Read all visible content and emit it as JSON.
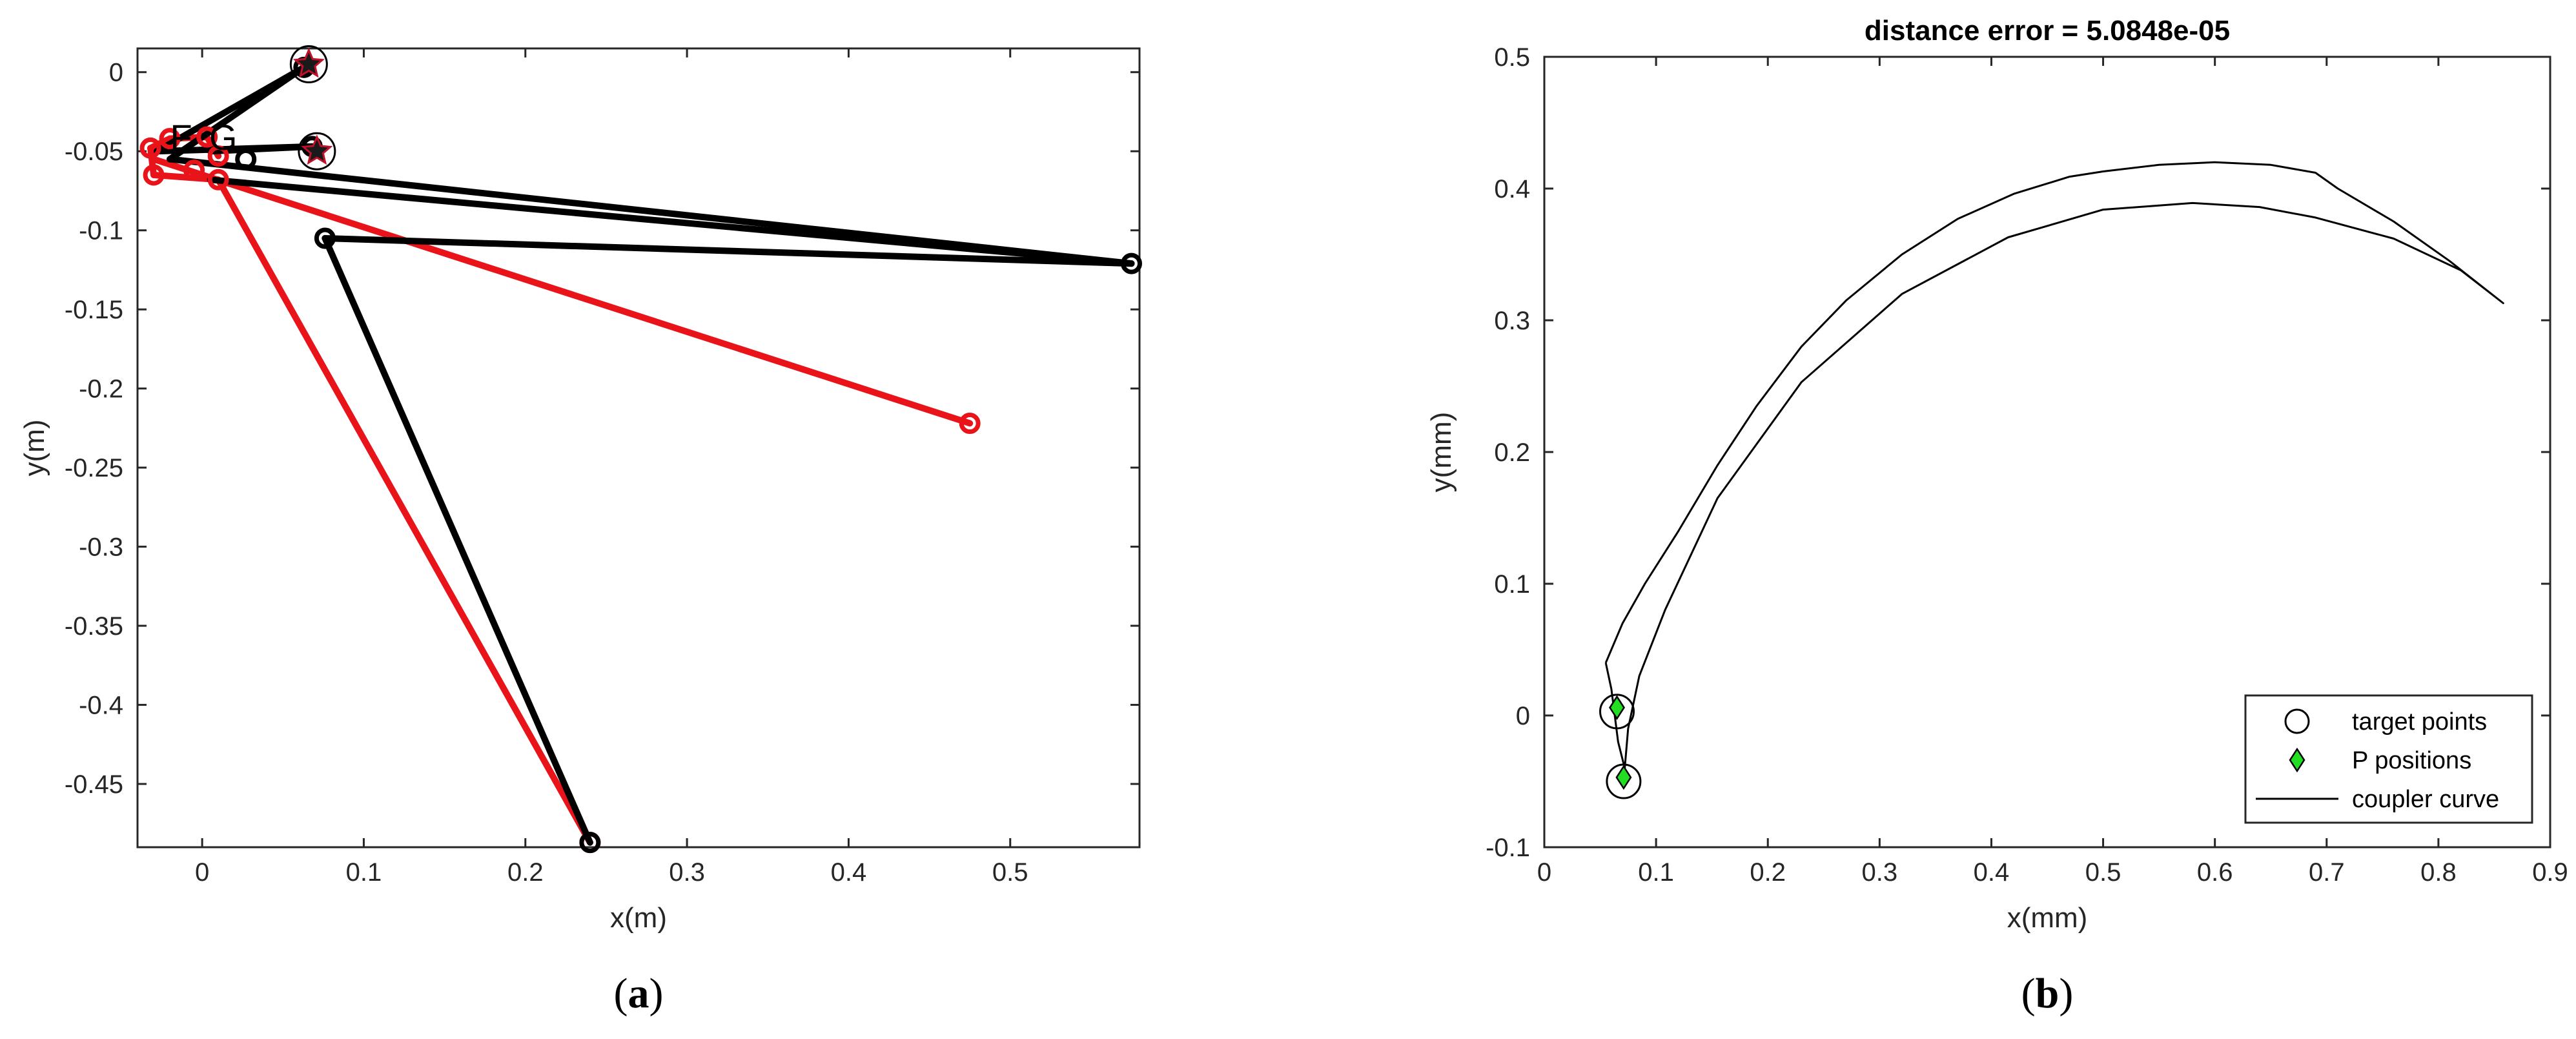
{
  "panels": [
    {
      "label_open": "(",
      "label_letter": "a",
      "label_close": ")",
      "chart_data": {
        "type": "line",
        "title": "",
        "xlabel": "x(m)",
        "ylabel": "y(m)",
        "xlim": [
          -0.04,
          0.58
        ],
        "ylim": [
          -0.49,
          0.015
        ],
        "xticks": [
          0,
          0.1,
          0.2,
          0.3,
          0.4,
          0.5
        ],
        "yticks": [
          0,
          -0.05,
          -0.1,
          -0.15,
          -0.2,
          -0.25,
          -0.3,
          -0.35,
          -0.4,
          -0.45
        ],
        "xtick_labels": [
          "0",
          "0.1",
          "0.2",
          "0.3",
          "0.4",
          "0.5"
        ],
        "ytick_labels": [
          "0",
          "-0.05",
          "-0.1",
          "-0.15",
          "-0.2",
          "-0.25",
          "-0.3",
          "-0.35",
          "-0.4",
          "-0.45"
        ],
        "grid": false,
        "series": [
          {
            "color": "#000000",
            "segments": [
              [
                [
                  -0.028,
                  -0.05
                ],
                [
                  0.063,
                  0.003
                ]
              ],
              [
                [
                  -0.02,
                  -0.055
                ],
                [
                  0.063,
                  0.003
                ]
              ],
              [
                [
                  -0.028,
                  -0.05
                ],
                [
                  0.068,
                  -0.047
                ]
              ],
              [
                [
                  0.005,
                  -0.05
                ],
                [
                  0.068,
                  -0.047
                ]
              ],
              [
                [
                  -0.02,
                  -0.055
                ],
                [
                  0.575,
                  -0.121
                ]
              ],
              [
                [
                  0.005,
                  -0.068
                ],
                [
                  0.575,
                  -0.121
                ]
              ],
              [
                [
                  0.076,
                  -0.105
                ],
                [
                  0.575,
                  -0.121
                ]
              ],
              [
                [
                  0.076,
                  -0.105
                ],
                [
                  0.24,
                  -0.487
                ]
              ]
            ],
            "markers": [
              [
                0.063,
                0.003
              ],
              [
                0.068,
                -0.047
              ],
              [
                0.575,
                -0.121
              ],
              [
                0.076,
                -0.105
              ],
              [
                0.027,
                -0.055
              ],
              [
                0.24,
                -0.487
              ]
            ]
          },
          {
            "color": "#e8141a",
            "segments": [
              [
                [
                  -0.032,
                  -0.048
                ],
                [
                  -0.02,
                  -0.042
                ]
              ],
              [
                [
                  -0.02,
                  -0.042
                ],
                [
                  0.003,
                  -0.041
                ]
              ],
              [
                [
                  0.003,
                  -0.041
                ],
                [
                  0.01,
                  -0.053
                ]
              ],
              [
                [
                  -0.032,
                  -0.048
                ],
                [
                  -0.03,
                  -0.065
                ]
              ],
              [
                [
                  -0.03,
                  -0.065
                ],
                [
                  0.01,
                  -0.068
                ]
              ],
              [
                [
                  -0.03,
                  -0.055
                ],
                [
                  0.475,
                  -0.222
                ]
              ],
              [
                [
                  0.01,
                  -0.068
                ],
                [
                  0.24,
                  -0.487
                ]
              ]
            ],
            "markers": [
              [
                -0.032,
                -0.048
              ],
              [
                -0.02,
                -0.042
              ],
              [
                0.003,
                -0.041
              ],
              [
                0.01,
                -0.053
              ],
              [
                -0.03,
                -0.065
              ],
              [
                -0.005,
                -0.062
              ],
              [
                0.01,
                -0.068
              ],
              [
                0.475,
                -0.222
              ],
              [
                0.24,
                -0.487
              ]
            ]
          }
        ],
        "target_points": [
          [
            0.066,
            0.005
          ],
          [
            0.071,
            -0.05
          ]
        ],
        "annotations": [
          {
            "text": "F",
            "x": -0.013,
            "y": -0.041
          },
          {
            "text": "G",
            "x": 0.013,
            "y": -0.041
          }
        ]
      }
    },
    {
      "label_open": "(",
      "label_letter": "b",
      "label_close": ")",
      "chart_data": {
        "type": "line",
        "title": "distance error = 5.0848e-05",
        "xlabel": "x(mm)",
        "ylabel": "y(mm)",
        "xlim": [
          0,
          0.9
        ],
        "ylim": [
          -0.1,
          0.5
        ],
        "xticks": [
          0,
          0.1,
          0.2,
          0.3,
          0.4,
          0.5,
          0.6,
          0.7,
          0.8,
          0.9
        ],
        "yticks": [
          -0.1,
          0,
          0.1,
          0.2,
          0.3,
          0.4,
          0.5
        ],
        "xtick_labels": [
          "0",
          "0.1",
          "0.2",
          "0.3",
          "0.4",
          "0.5",
          "0.6",
          "0.7",
          "0.8",
          "0.9"
        ],
        "ytick_labels": [
          "-0.1",
          "0",
          "0.1",
          "0.2",
          "0.3",
          "0.4",
          "0.5"
        ],
        "grid": false,
        "legend_position": "bottom-right",
        "legend": [
          "target points",
          "P positions",
          "coupler curve"
        ],
        "series": [
          {
            "name": "coupler curve",
            "color": "#000000",
            "x": [
              0.055,
              0.07,
              0.09,
              0.12,
              0.155,
              0.19,
              0.23,
              0.27,
              0.32,
              0.37,
              0.42,
              0.47,
              0.5,
              0.55,
              0.6,
              0.65,
              0.69,
              0.71,
              0.76,
              0.81,
              0.858,
              0.82,
              0.76,
              0.69,
              0.64,
              0.58,
              0.5,
              0.415,
              0.32,
              0.23,
              0.155,
              0.108,
              0.085,
              0.075,
              0.072,
              0.066,
              0.06,
              0.055
            ],
            "y": [
              0.04,
              0.07,
              0.1,
              0.14,
              0.19,
              0.235,
              0.28,
              0.315,
              0.35,
              0.377,
              0.396,
              0.409,
              0.413,
              0.418,
              0.42,
              0.418,
              0.412,
              0.4,
              0.375,
              0.345,
              0.313,
              0.338,
              0.362,
              0.378,
              0.386,
              0.389,
              0.384,
              0.363,
              0.32,
              0.253,
              0.165,
              0.08,
              0.03,
              -0.01,
              -0.04,
              -0.02,
              0.02,
              0.04
            ]
          },
          {
            "name": "target points",
            "marker": "circle",
            "x": [
              0.065,
              0.071
            ],
            "y": [
              0.003,
              -0.05
            ]
          },
          {
            "name": "P positions",
            "marker": "diamond",
            "color": "#22dd22",
            "x": [
              0.065,
              0.071
            ],
            "y": [
              0.006,
              -0.047
            ]
          }
        ]
      }
    }
  ]
}
